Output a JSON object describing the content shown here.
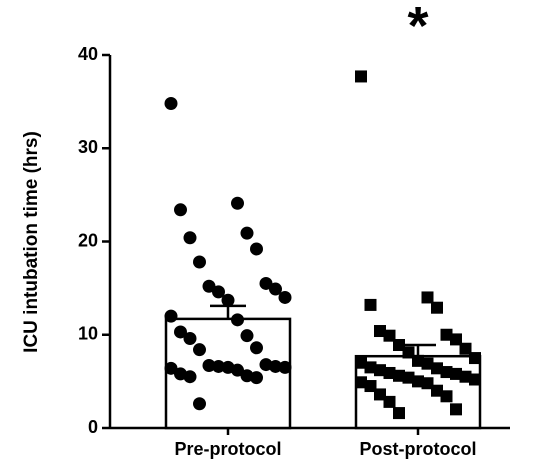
{
  "chart_data": {
    "type": "bar",
    "y_label": "ICU intubation time (hrs)",
    "categories": [
      "Pre-protocol",
      "Post-protocol"
    ],
    "values": [
      11.7,
      7.7
    ],
    "errors": [
      1.4,
      1.2
    ],
    "points": [
      [
        34.8,
        24.1,
        23.4,
        20.9,
        20.4,
        19.2,
        17.8,
        15.5,
        15.2,
        14.9,
        14.6,
        14.0,
        13.7,
        12.0,
        11.6,
        10.3,
        9.9,
        9.6,
        8.6,
        8.4,
        6.8,
        6.7,
        6.6,
        6.6,
        6.5,
        6.5,
        6.4,
        6.2,
        5.8,
        5.6,
        5.5,
        5.4,
        2.6
      ],
      [
        37.7,
        14.0,
        13.2,
        12.9,
        10.4,
        10.0,
        9.9,
        9.5,
        8.9,
        8.5,
        8.1,
        7.5,
        7.2,
        7.0,
        6.9,
        6.5,
        6.4,
        6.2,
        6.0,
        5.9,
        5.8,
        5.6,
        5.5,
        5.4,
        5.2,
        5.0,
        4.9,
        4.8,
        4.5,
        4.0,
        3.6,
        3.4,
        2.8,
        2.0,
        1.6
      ]
    ],
    "point_shapes": [
      "circle",
      "square"
    ],
    "annotation": "*",
    "bar_fill": "#ffffff",
    "color": "#000000",
    "ylim": [
      0,
      40
    ],
    "yticks": [
      0,
      10,
      20,
      30,
      40
    ]
  }
}
